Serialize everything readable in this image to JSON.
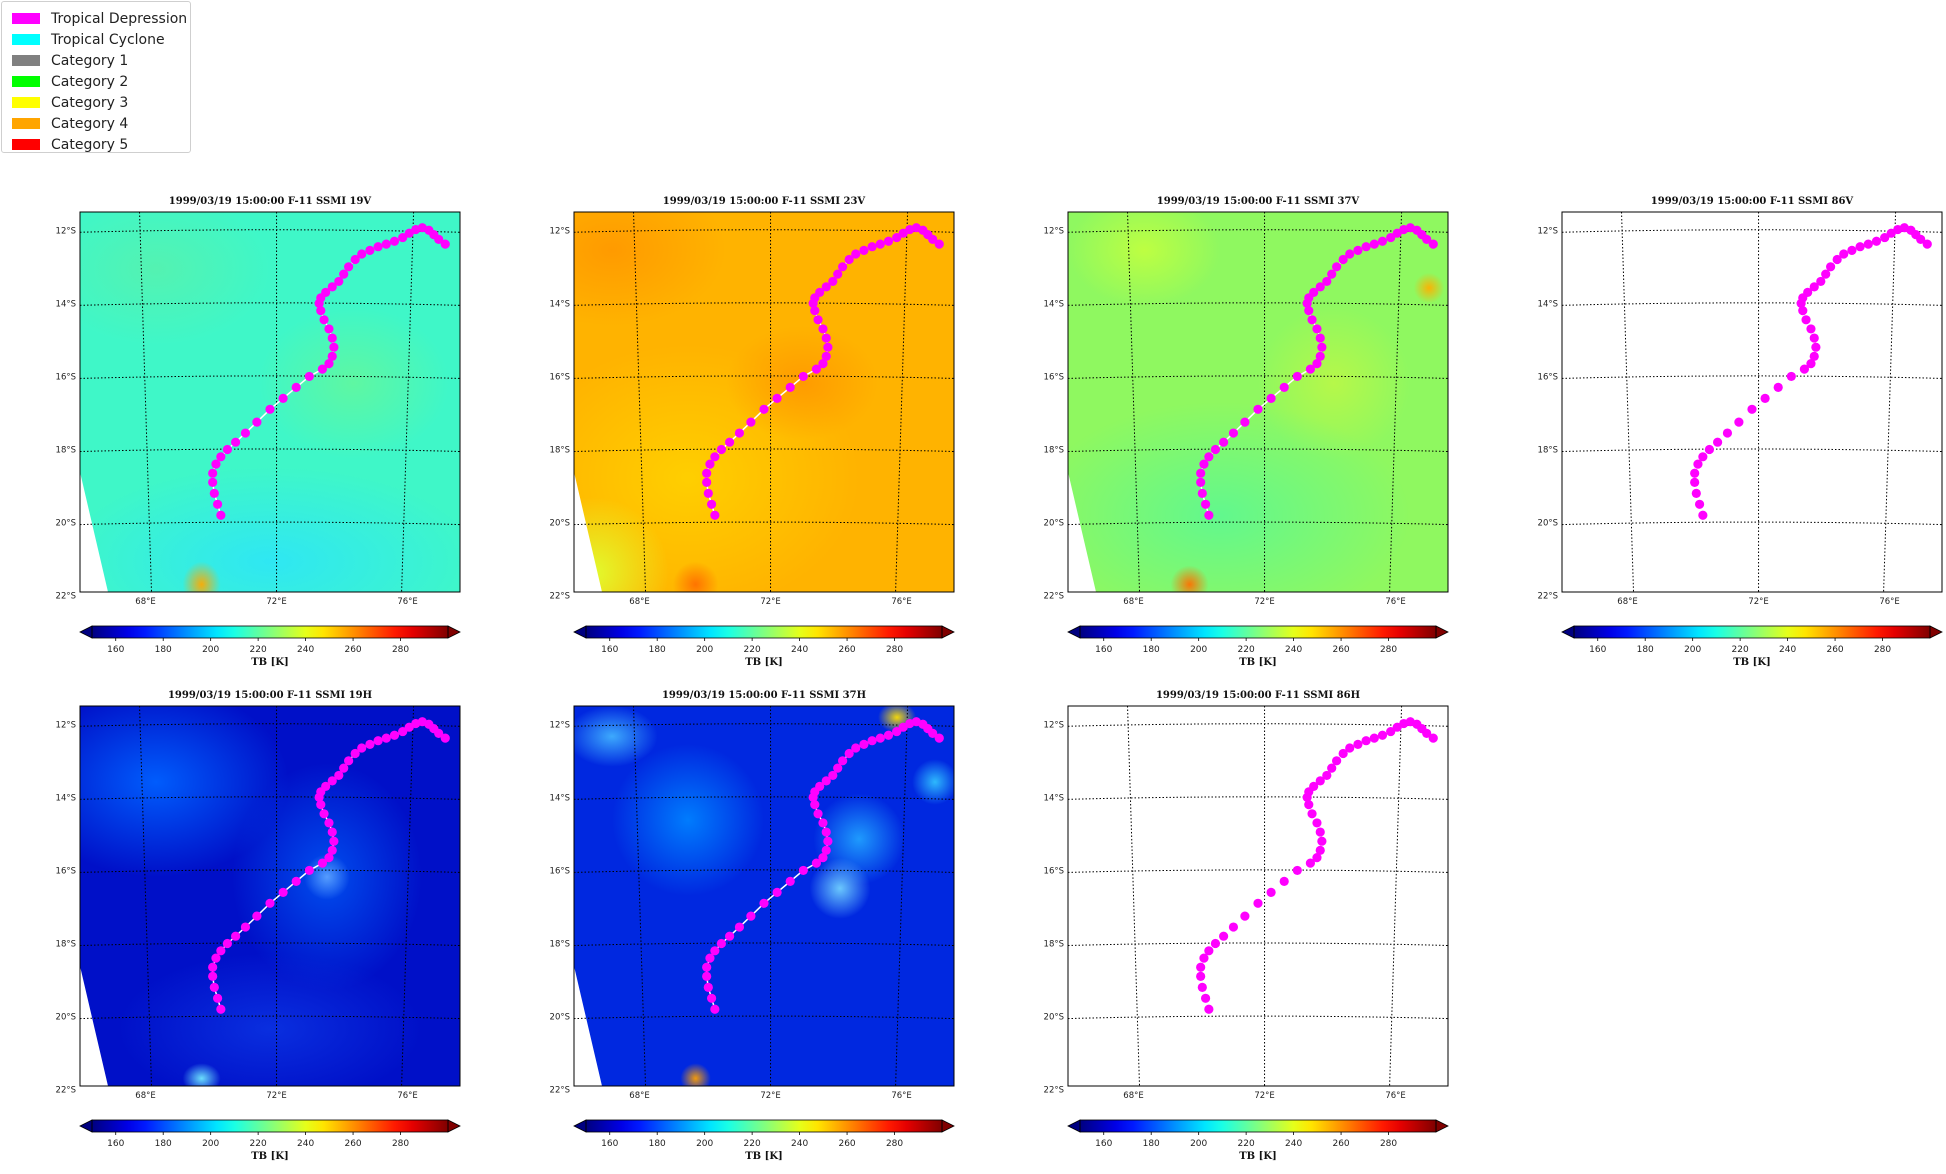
{
  "legend": {
    "items": [
      {
        "label": "Tropical Depression",
        "color": "#ff00ff"
      },
      {
        "label": "Tropical Cyclone",
        "color": "#00ffff"
      },
      {
        "label": "Category 1",
        "color": "#808080"
      },
      {
        "label": "Category 2",
        "color": "#00ff00"
      },
      {
        "label": "Category 3",
        "color": "#ffff00"
      },
      {
        "label": "Category 4",
        "color": "#ffa500"
      },
      {
        "label": "Category 5",
        "color": "#ff0000"
      }
    ]
  },
  "chart_data": [
    {
      "type": "heatmap",
      "title": "1999/03/19 15:00:00  F-11 SSMI 19V",
      "field": "cyan",
      "has_data": true
    },
    {
      "type": "heatmap",
      "title": "1999/03/19 15:00:00  F-11 SSMI 23V",
      "field": "orange",
      "has_data": true
    },
    {
      "type": "heatmap",
      "title": "1999/03/19 15:00:00  F-11 SSMI 37V",
      "field": "green",
      "has_data": true
    },
    {
      "type": "heatmap",
      "title": "1999/03/19 15:00:00  F-11 SSMI 86V",
      "field": "none",
      "has_data": false
    },
    {
      "type": "heatmap",
      "title": "1999/03/19 15:00:00  F-11 SSMI 19H",
      "field": "blue",
      "has_data": true
    },
    {
      "type": "heatmap",
      "title": "1999/03/19 15:00:00  F-11 SSMI 37H",
      "field": "blue2",
      "has_data": true
    },
    {
      "type": "heatmap",
      "title": "1999/03/19 15:00:00  F-11 SSMI 86H",
      "field": "none",
      "has_data": false
    }
  ],
  "shared": {
    "lat_ticks": [
      "12°S",
      "14°S",
      "16°S",
      "18°S",
      "20°S",
      "22°S"
    ],
    "lon_ticks": [
      "68°E",
      "72°E",
      "76°E"
    ],
    "colorbar": {
      "label": "TB [K]",
      "ticks": [
        "160",
        "180",
        "200",
        "220",
        "240",
        "260",
        "280"
      ],
      "vmin": 150,
      "vmax": 300,
      "extend": "both",
      "colormap": "jet"
    },
    "track_color": "#ff00ff",
    "track": [
      [
        70.3,
        -19.8
      ],
      [
        70.2,
        -19.5
      ],
      [
        70.1,
        -19.2
      ],
      [
        70.05,
        -18.9
      ],
      [
        70.05,
        -18.65
      ],
      [
        70.15,
        -18.4
      ],
      [
        70.3,
        -18.2
      ],
      [
        70.5,
        -18.0
      ],
      [
        70.75,
        -17.8
      ],
      [
        71.05,
        -17.55
      ],
      [
        71.4,
        -17.25
      ],
      [
        71.8,
        -16.9
      ],
      [
        72.2,
        -16.6
      ],
      [
        72.6,
        -16.3
      ],
      [
        73.0,
        -16.0
      ],
      [
        73.4,
        -15.8
      ],
      [
        73.6,
        -15.65
      ],
      [
        73.7,
        -15.45
      ],
      [
        73.75,
        -15.2
      ],
      [
        73.7,
        -14.95
      ],
      [
        73.6,
        -14.7
      ],
      [
        73.45,
        -14.45
      ],
      [
        73.35,
        -14.2
      ],
      [
        73.3,
        -14.0
      ],
      [
        73.35,
        -13.85
      ],
      [
        73.5,
        -13.7
      ],
      [
        73.7,
        -13.55
      ],
      [
        73.9,
        -13.4
      ],
      [
        74.05,
        -13.2
      ],
      [
        74.2,
        -13.0
      ],
      [
        74.4,
        -12.8
      ],
      [
        74.6,
        -12.65
      ],
      [
        74.85,
        -12.55
      ],
      [
        75.1,
        -12.45
      ],
      [
        75.35,
        -12.38
      ],
      [
        75.6,
        -12.3
      ],
      [
        75.85,
        -12.2
      ],
      [
        76.05,
        -12.08
      ],
      [
        76.25,
        -11.98
      ],
      [
        76.45,
        -11.93
      ],
      [
        76.65,
        -12.0
      ],
      [
        76.8,
        -12.12
      ],
      [
        76.95,
        -12.25
      ],
      [
        77.15,
        -12.38
      ]
    ]
  }
}
